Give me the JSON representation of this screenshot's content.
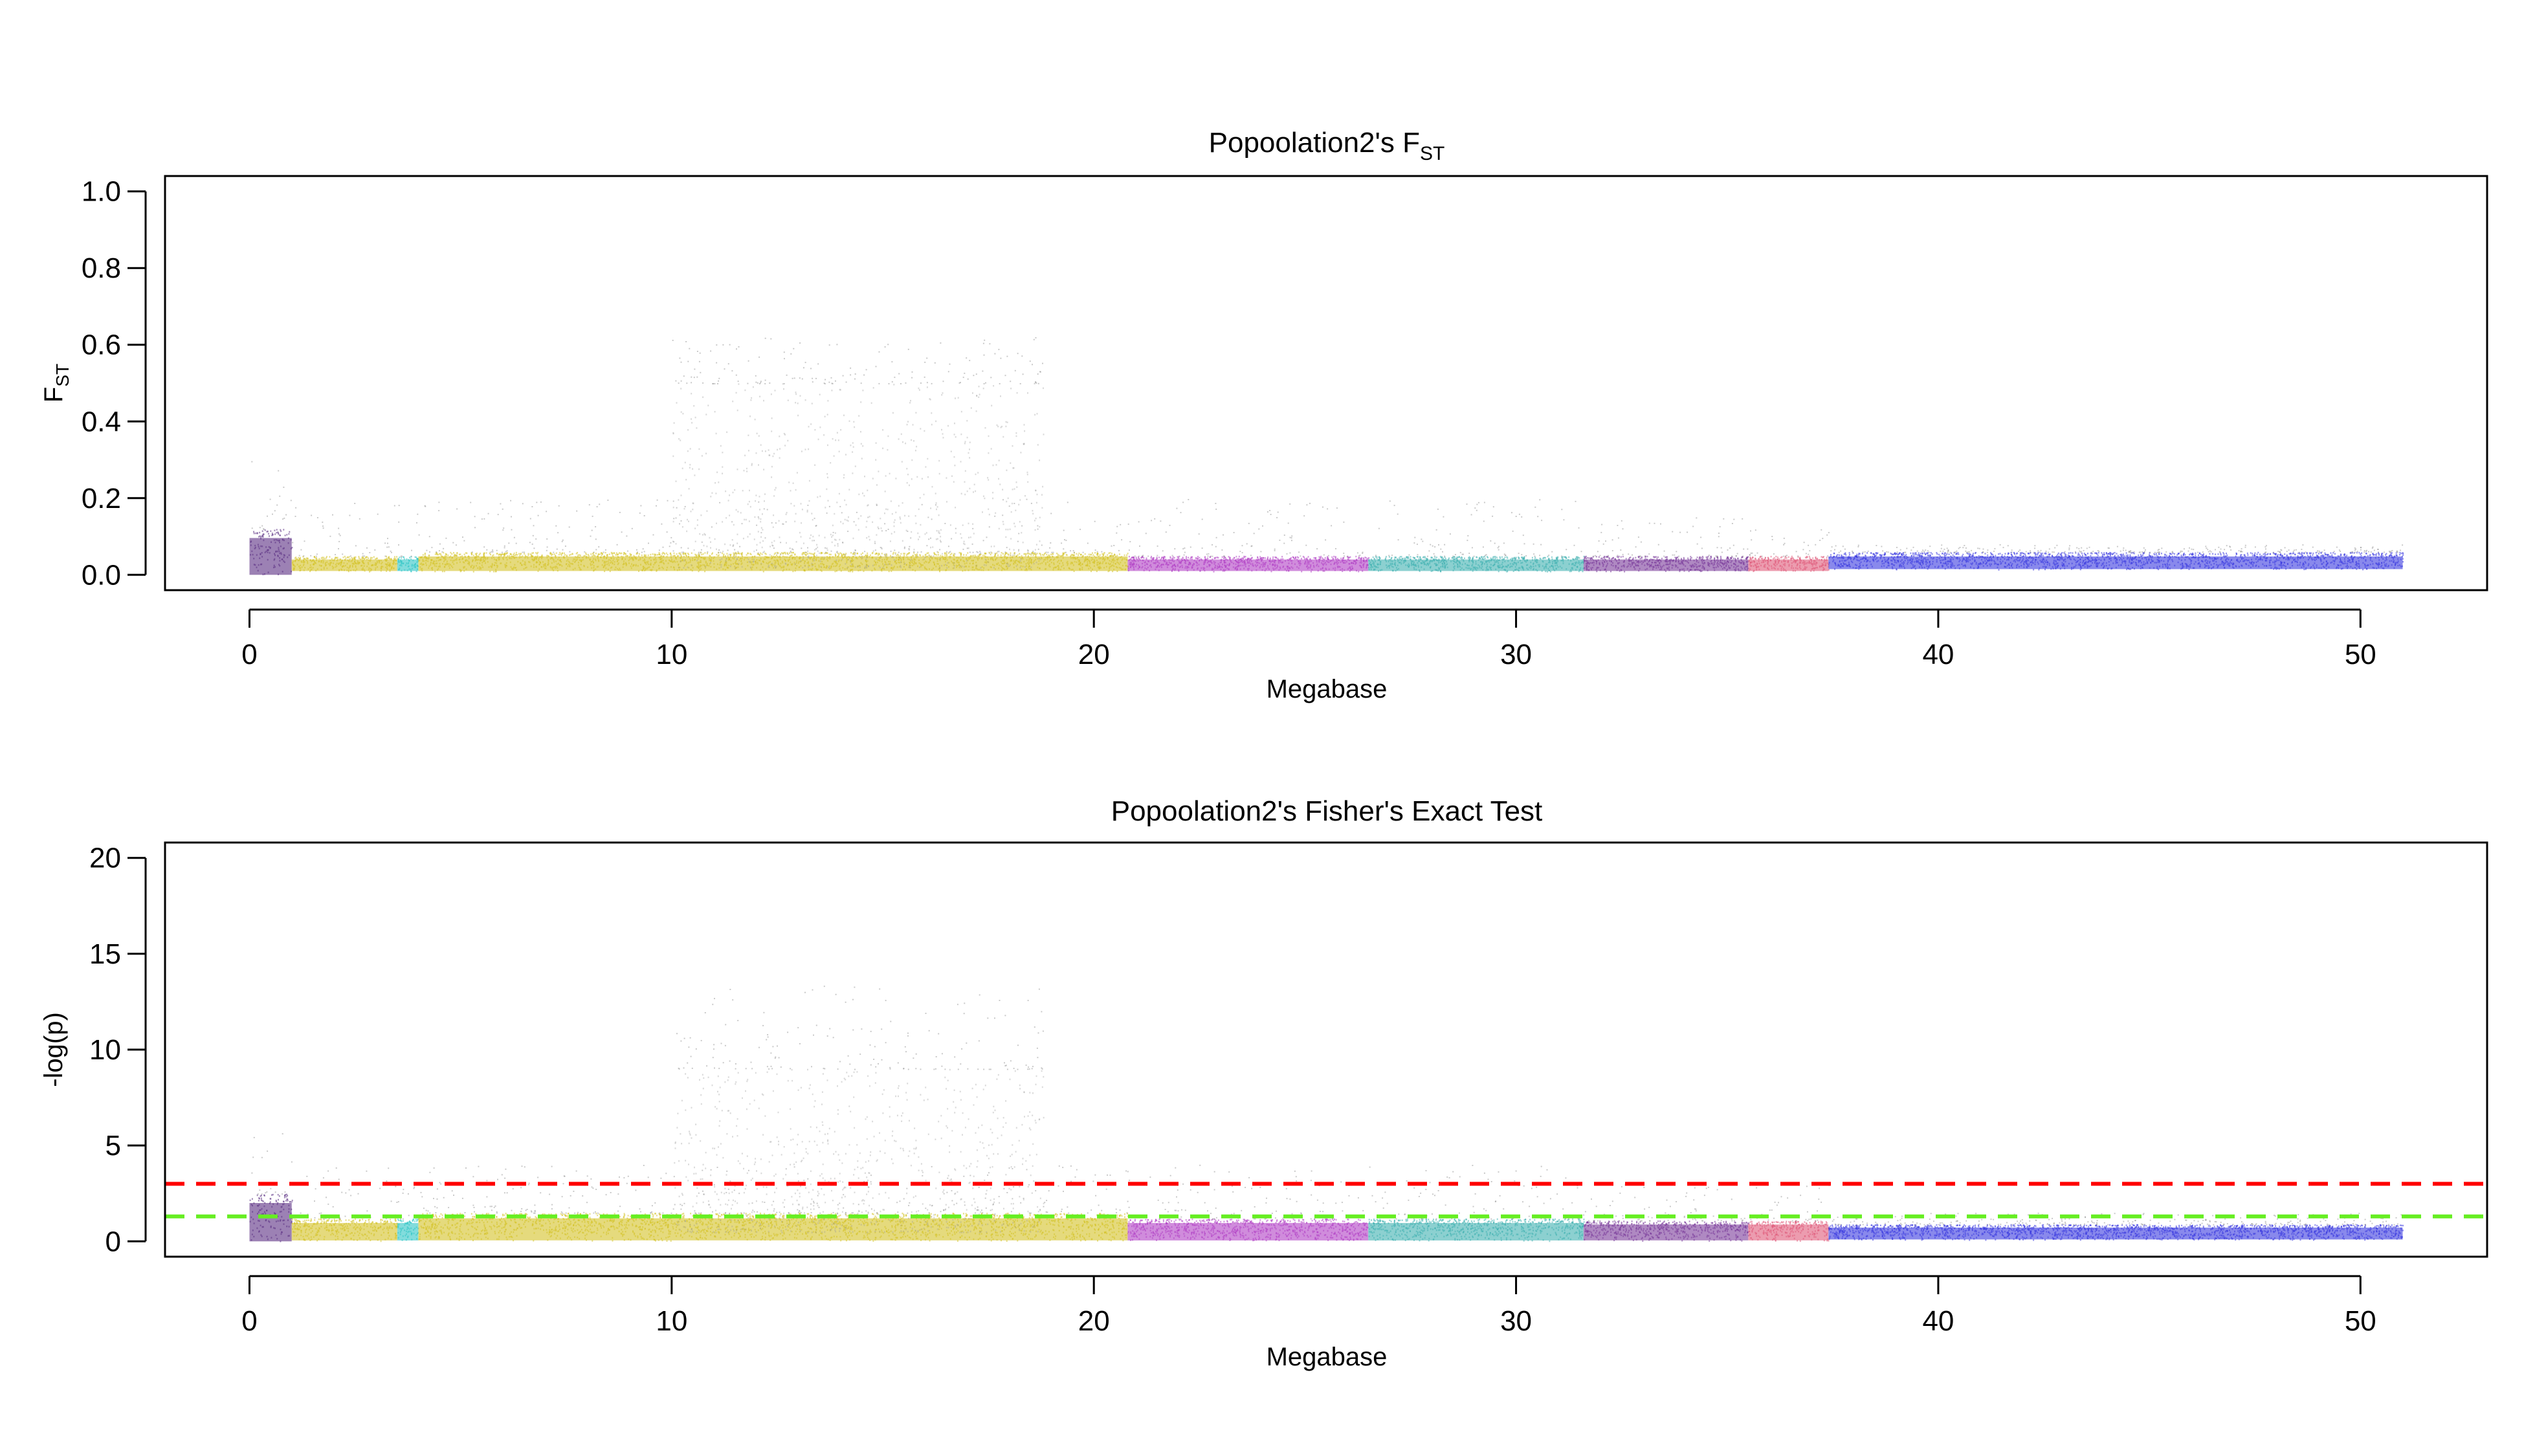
{
  "chart_data": [
    {
      "type": "scatter",
      "title_main": "Popoolation2's F",
      "title_sub": "ST",
      "xlabel": "Megabase",
      "ylabel_main": "F",
      "ylabel_sub": "ST",
      "xlim": [
        -2,
        53
      ],
      "ylim": [
        -0.04,
        1.04
      ],
      "xticks": [
        0,
        10,
        20,
        30,
        40,
        50
      ],
      "xtick_labels": [
        "0",
        "10",
        "20",
        "30",
        "40",
        "50"
      ],
      "yticks": [
        0.0,
        0.2,
        0.4,
        0.6,
        0.8,
        1.0
      ],
      "ytick_labels": [
        "0.0",
        "0.2",
        "0.4",
        "0.6",
        "0.8",
        "1.0"
      ],
      "grid": false,
      "legend": "none",
      "regions": [
        {
          "color": "#5a2d82",
          "x": [
            0.0,
            1.0
          ],
          "band_low": 0.0,
          "band_high": 0.12,
          "outlier_max": 0.3
        },
        {
          "color": "#d4c227",
          "x": [
            1.0,
            3.5
          ],
          "band_low": 0.01,
          "band_high": 0.05,
          "outlier_max": 0.2
        },
        {
          "color": "#2ec4c4",
          "x": [
            3.5,
            4.0
          ],
          "band_low": 0.01,
          "band_high": 0.05,
          "outlier_max": 0.2
        },
        {
          "color": "#d4c227",
          "x": [
            4.0,
            20.8
          ],
          "band_low": 0.01,
          "band_high": 0.06,
          "outlier_max": 0.2
        },
        {
          "color": "#999999",
          "x": [
            10.0,
            18.8
          ],
          "band_low": 0.02,
          "band_high": 0.5,
          "outlier_max": 0.62
        },
        {
          "color": "#b03fc4",
          "x": [
            20.8,
            26.5
          ],
          "band_low": 0.01,
          "band_high": 0.05,
          "outlier_max": 0.2
        },
        {
          "color": "#3fb0b0",
          "x": [
            26.5,
            31.6
          ],
          "band_low": 0.01,
          "band_high": 0.05,
          "outlier_max": 0.2
        },
        {
          "color": "#7a3a9a",
          "x": [
            31.6,
            35.5
          ],
          "band_low": 0.01,
          "band_high": 0.05,
          "outlier_max": 0.15
        },
        {
          "color": "#e05a7a",
          "x": [
            35.5,
            37.4
          ],
          "band_low": 0.01,
          "band_high": 0.05,
          "outlier_max": 0.12
        },
        {
          "color": "#3a3ae0",
          "x": [
            37.4,
            51.0
          ],
          "band_low": 0.015,
          "band_high": 0.06,
          "outlier_max": 0.08
        }
      ]
    },
    {
      "type": "scatter",
      "title_main": "Popoolation2's Fisher's Exact Test",
      "xlabel": "Megabase",
      "ylabel_main": "-log(p)",
      "xlim": [
        -2,
        53
      ],
      "ylim": [
        -0.8,
        20.8
      ],
      "xticks": [
        0,
        10,
        20,
        30,
        40,
        50
      ],
      "xtick_labels": [
        "0",
        "10",
        "20",
        "30",
        "40",
        "50"
      ],
      "yticks": [
        0,
        5,
        10,
        15,
        20
      ],
      "ytick_labels": [
        "0",
        "5",
        "10",
        "15",
        "20"
      ],
      "grid": false,
      "legend": "none",
      "hlines": [
        {
          "y": 3.0,
          "color": "#ff0000",
          "style": "dashed"
        },
        {
          "y": 1.3,
          "color": "#66ee22",
          "style": "dashed"
        }
      ],
      "regions": [
        {
          "color": "#5a2d82",
          "x": [
            0.0,
            1.0
          ],
          "band_low": 0.0,
          "band_high": 2.5,
          "outlier_max": 6
        },
        {
          "color": "#d4c227",
          "x": [
            1.0,
            3.5
          ],
          "band_low": 0.05,
          "band_high": 1.2,
          "outlier_max": 4
        },
        {
          "color": "#2ec4c4",
          "x": [
            3.5,
            4.0
          ],
          "band_low": 0.05,
          "band_high": 1.2,
          "outlier_max": 4
        },
        {
          "color": "#d4c227",
          "x": [
            4.0,
            20.8
          ],
          "band_low": 0.05,
          "band_high": 1.5,
          "outlier_max": 4
        },
        {
          "color": "#999999",
          "x": [
            10.0,
            18.8
          ],
          "band_low": 0.5,
          "band_high": 9.0,
          "outlier_max": 13.5
        },
        {
          "color": "#b03fc4",
          "x": [
            20.8,
            26.5
          ],
          "band_low": 0.05,
          "band_high": 1.2,
          "outlier_max": 4
        },
        {
          "color": "#3fb0b0",
          "x": [
            26.5,
            31.6
          ],
          "band_low": 0.05,
          "band_high": 1.2,
          "outlier_max": 4
        },
        {
          "color": "#7a3a9a",
          "x": [
            31.6,
            35.5
          ],
          "band_low": 0.05,
          "band_high": 1.1,
          "outlier_max": 3
        },
        {
          "color": "#e05a7a",
          "x": [
            35.5,
            37.4
          ],
          "band_low": 0.05,
          "band_high": 1.1,
          "outlier_max": 3
        },
        {
          "color": "#3a3ae0",
          "x": [
            37.4,
            51.0
          ],
          "band_low": 0.1,
          "band_high": 0.9,
          "outlier_max": 1.5
        }
      ]
    }
  ]
}
